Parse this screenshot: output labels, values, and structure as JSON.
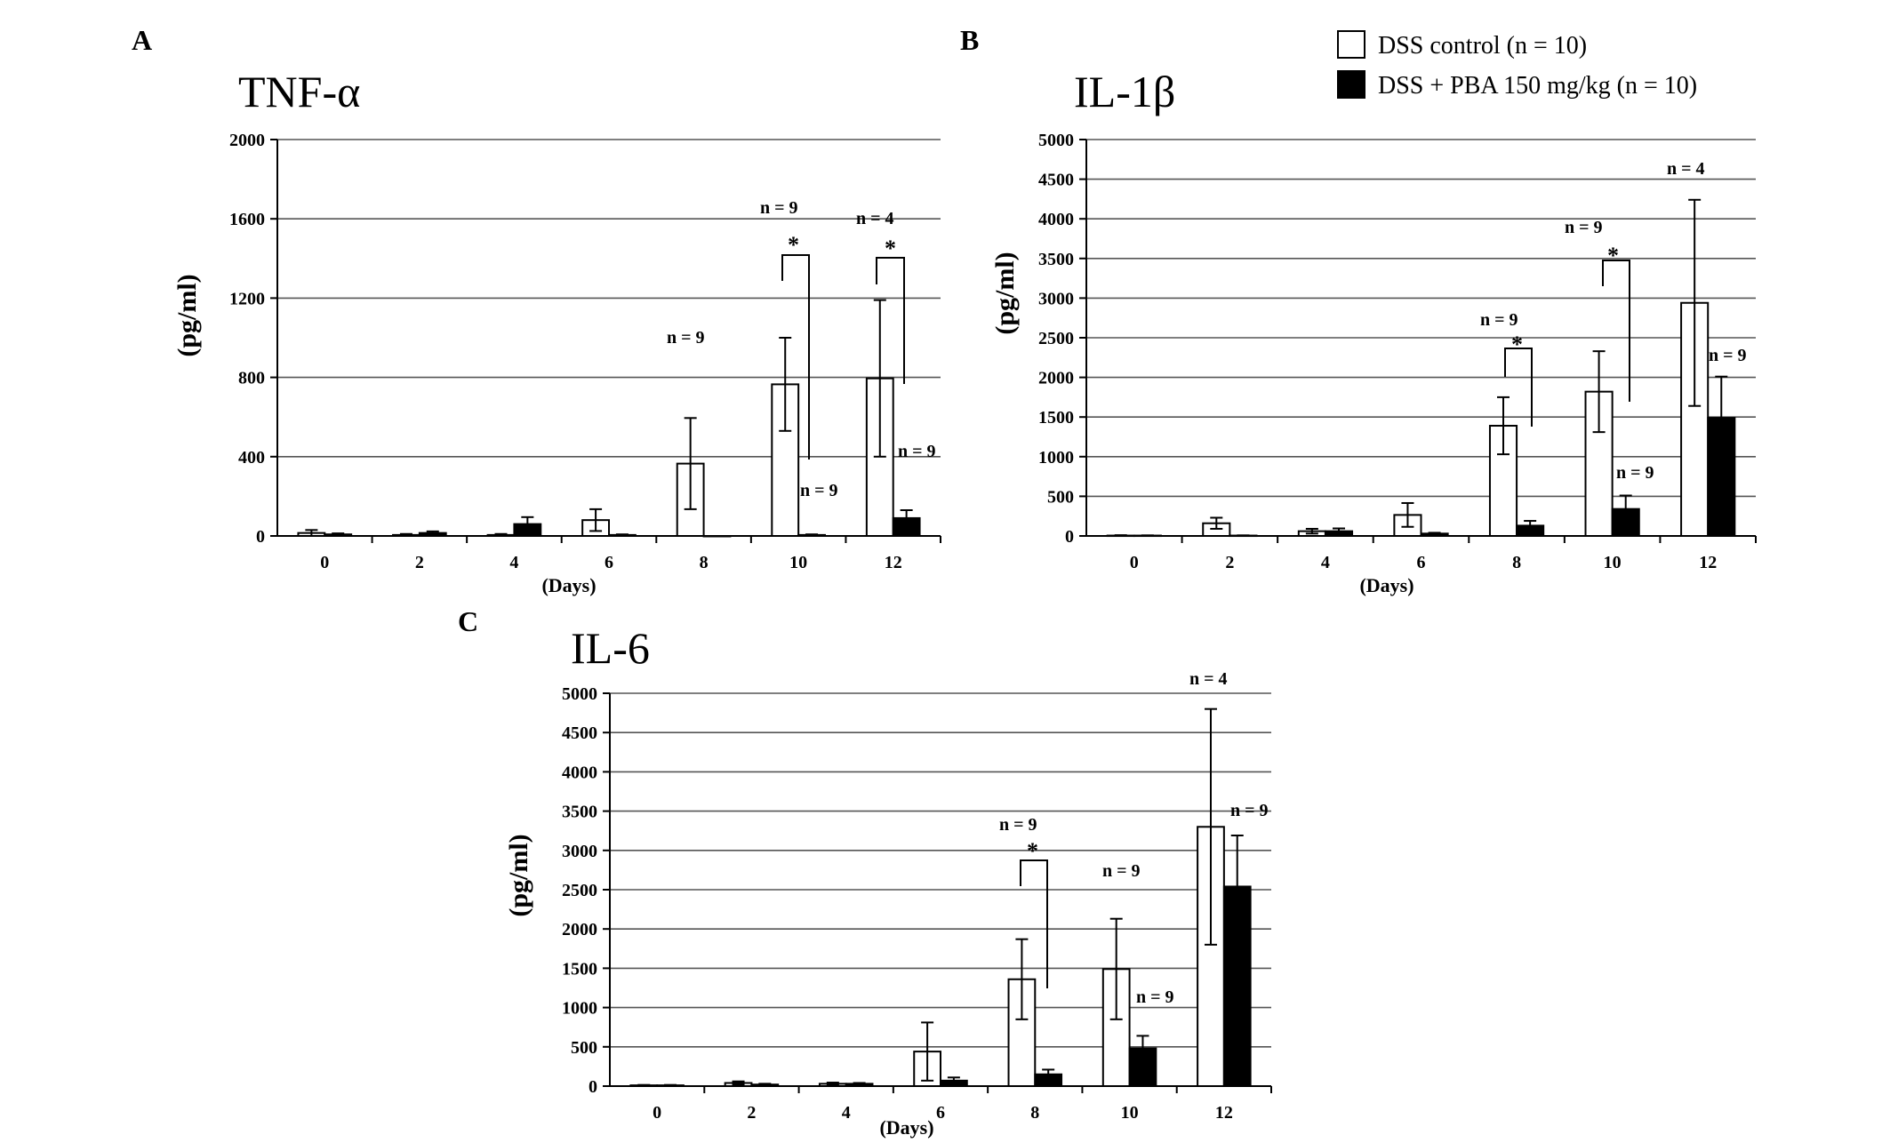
{
  "legend": {
    "items": [
      {
        "label": "DSS control (n = 10)",
        "color": "#ffffff"
      },
      {
        "label": "DSS + PBA 150 mg/kg (n = 10)",
        "color": "#000000"
      }
    ]
  },
  "chart_data": [
    {
      "panel": "A",
      "title": "TNF-α",
      "type": "bar",
      "xlabel": "(Days)",
      "ylabel": "(pg/ml)",
      "ylim": [
        0,
        2000
      ],
      "yticks": [
        "0",
        "400",
        "800",
        "1200",
        "1600",
        "2000"
      ],
      "categories": [
        "0",
        "2",
        "4",
        "6",
        "8",
        "10",
        "12"
      ],
      "series": [
        {
          "name": "DSS control (n = 10)",
          "values": [
            15,
            5,
            5,
            80,
            365,
            765,
            795
          ],
          "errors": [
            15,
            5,
            5,
            55,
            230,
            235,
            395
          ]
        },
        {
          "name": "DSS + PBA 150 mg/kg (n = 10)",
          "values": [
            8,
            15,
            60,
            5,
            0,
            5,
            90
          ],
          "errors": [
            5,
            8,
            35,
            3,
            0,
            3,
            40
          ]
        }
      ],
      "annotations": [
        "n = 9",
        "n = 9",
        "n = 4",
        "n = 9",
        "n = 9",
        "*",
        "*"
      ]
    },
    {
      "panel": "B",
      "title": "IL-1β",
      "type": "bar",
      "xlabel": "(Days)",
      "ylabel": "(pg/ml)",
      "ylim": [
        0,
        5000
      ],
      "yticks": [
        "0",
        "500",
        "1000",
        "1500",
        "2000",
        "2500",
        "3000",
        "3500",
        "4000",
        "4500",
        "5000"
      ],
      "categories": [
        "0",
        "2",
        "4",
        "6",
        "8",
        "10",
        "12"
      ],
      "series": [
        {
          "name": "DSS control (n = 10)",
          "values": [
            5,
            160,
            60,
            265,
            1390,
            1820,
            2940
          ],
          "errors": [
            5,
            70,
            30,
            150,
            360,
            510,
            1300
          ]
        },
        {
          "name": "DSS + PBA 150 mg/kg (n = 10)",
          "values": [
            5,
            5,
            60,
            30,
            130,
            340,
            1490
          ],
          "errors": [
            3,
            3,
            35,
            10,
            60,
            170,
            520
          ]
        }
      ],
      "annotations": [
        "n = 9",
        "n = 9",
        "n = 4",
        "n = 9",
        "n = 9",
        "*",
        "*"
      ]
    },
    {
      "panel": "C",
      "title": "IL-6",
      "type": "bar",
      "xlabel": "(Days)",
      "ylabel": "(pg/ml)",
      "ylim": [
        0,
        5000
      ],
      "yticks": [
        "0",
        "500",
        "1000",
        "1500",
        "2000",
        "2500",
        "3000",
        "3500",
        "4000",
        "4500",
        "5000"
      ],
      "categories": [
        "0",
        "2",
        "4",
        "6",
        "8",
        "10",
        "12"
      ],
      "series": [
        {
          "name": "DSS control (n = 10)",
          "values": [
            10,
            40,
            30,
            440,
            1360,
            1490,
            3300
          ],
          "errors": [
            5,
            20,
            15,
            370,
            510,
            640,
            1500
          ]
        },
        {
          "name": "DSS + PBA 150 mg/kg (n = 10)",
          "values": [
            10,
            20,
            30,
            70,
            150,
            480,
            2540
          ],
          "errors": [
            5,
            10,
            10,
            40,
            60,
            160,
            650
          ]
        }
      ],
      "annotations": [
        "n = 9",
        "n = 9",
        "n = 4",
        "n = 9",
        "n = 9",
        "*"
      ]
    }
  ]
}
